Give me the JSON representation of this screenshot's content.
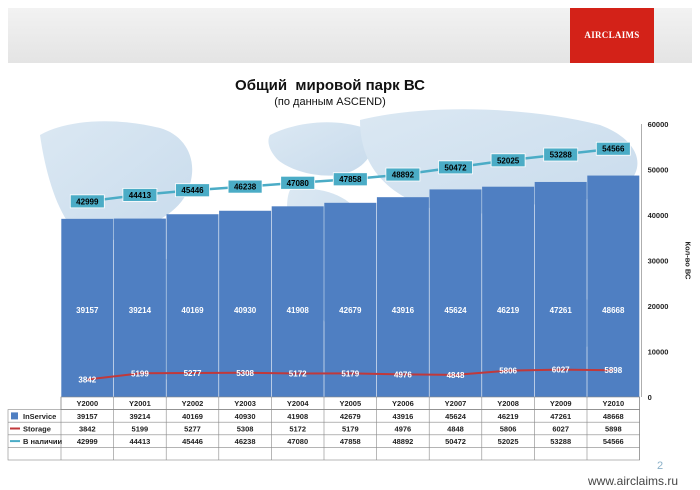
{
  "header": {
    "logo_text": "AIRCLAIMS",
    "title": "Общий  мировой парк ВС",
    "subtitle": "(по данным ASCEND)"
  },
  "footer": {
    "page_number": "2",
    "url": "www.airclaims.ru"
  },
  "colors": {
    "bar": "#4f7fc2",
    "storage_line": "#c0393b",
    "total_line": "#4bacc6",
    "total_label_bg": "#4bacc6"
  },
  "chart_data": {
    "type": "bar",
    "categories": [
      "Y2000",
      "Y2001",
      "Y2002",
      "Y2003",
      "Y2004",
      "Y2005",
      "Y2006",
      "Y2007",
      "Y2008",
      "Y2009",
      "Y2010"
    ],
    "series": [
      {
        "name": "InService",
        "type": "bar",
        "values": [
          39157,
          39214,
          40169,
          40930,
          41908,
          42679,
          43916,
          45624,
          46219,
          47261,
          48668
        ]
      },
      {
        "name": "Storage",
        "type": "line",
        "values": [
          3842,
          5199,
          5277,
          5308,
          5172,
          5179,
          4976,
          4848,
          5806,
          6027,
          5898
        ]
      },
      {
        "name": "В наличии",
        "type": "line",
        "values": [
          42999,
          44413,
          45446,
          46238,
          47080,
          47858,
          48892,
          50472,
          52025,
          53288,
          54566
        ]
      }
    ],
    "ylabel": "Кол-во ВС",
    "ylim": [
      0,
      60000
    ],
    "yticks": [
      0,
      10000,
      20000,
      30000,
      40000,
      50000,
      60000
    ],
    "grid": false,
    "legend": "data-table"
  }
}
